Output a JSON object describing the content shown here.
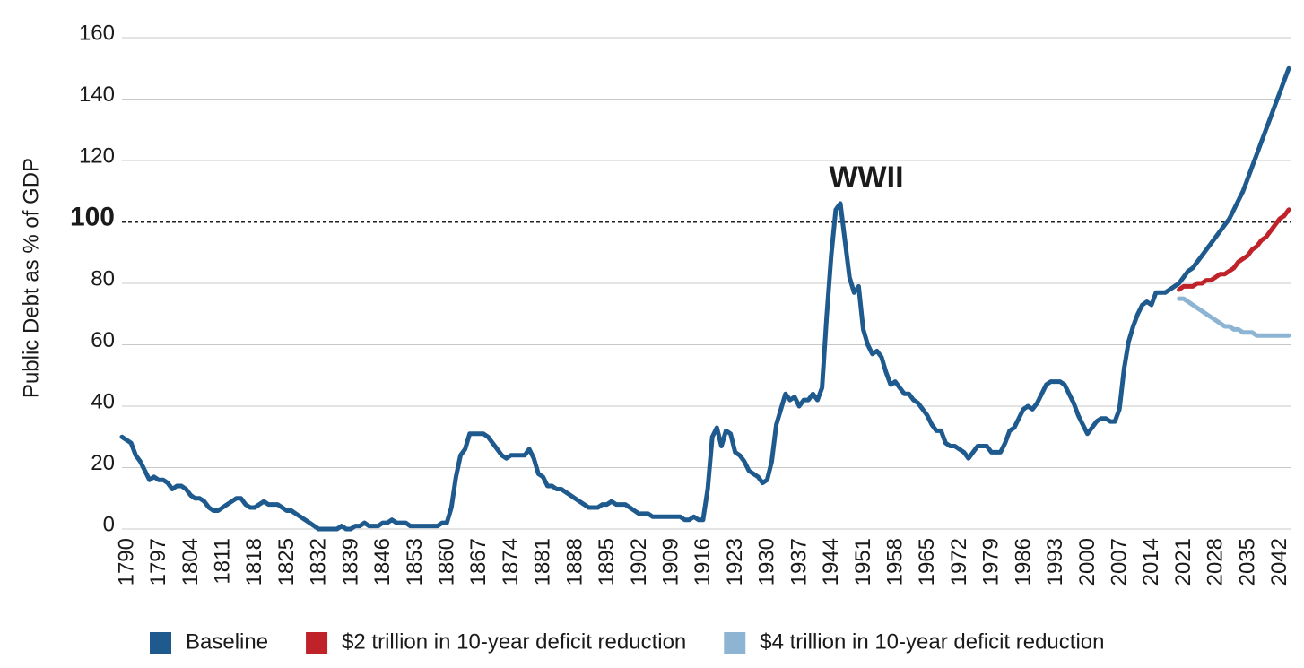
{
  "chart_data": {
    "type": "line",
    "y_label": "Public Debt as % of GDP",
    "annotation": "WWII",
    "xlim": [
      1790,
      2045
    ],
    "xticks": [
      1790,
      1797,
      1804,
      1811,
      1818,
      1825,
      1832,
      1839,
      1846,
      1853,
      1860,
      1867,
      1874,
      1881,
      1888,
      1895,
      1902,
      1909,
      1916,
      1923,
      1930,
      1937,
      1944,
      1951,
      1958,
      1965,
      1972,
      1979,
      1986,
      1993,
      2000,
      2007,
      2014,
      2021,
      2028,
      2035,
      2042
    ],
    "ylim": [
      0,
      160
    ],
    "yticks": [
      0,
      20,
      40,
      60,
      80,
      100,
      120,
      140,
      160
    ],
    "reference_line": 100,
    "grid": true,
    "legend": "bottom",
    "series": [
      {
        "name": "Baseline",
        "color": "#1f5a8e",
        "x": [
          1790,
          1791,
          1792,
          1793,
          1794,
          1795,
          1796,
          1797,
          1798,
          1799,
          1800,
          1801,
          1802,
          1803,
          1804,
          1805,
          1806,
          1807,
          1808,
          1809,
          1810,
          1811,
          1812,
          1813,
          1814,
          1815,
          1816,
          1817,
          1818,
          1819,
          1820,
          1821,
          1822,
          1823,
          1824,
          1825,
          1826,
          1827,
          1828,
          1829,
          1830,
          1831,
          1832,
          1833,
          1834,
          1835,
          1836,
          1837,
          1838,
          1839,
          1840,
          1841,
          1842,
          1843,
          1844,
          1845,
          1846,
          1847,
          1848,
          1849,
          1850,
          1851,
          1852,
          1853,
          1854,
          1855,
          1856,
          1857,
          1858,
          1859,
          1860,
          1861,
          1862,
          1863,
          1864,
          1865,
          1866,
          1867,
          1868,
          1869,
          1870,
          1871,
          1872,
          1873,
          1874,
          1875,
          1876,
          1877,
          1878,
          1879,
          1880,
          1881,
          1882,
          1883,
          1884,
          1885,
          1886,
          1887,
          1888,
          1889,
          1890,
          1891,
          1892,
          1893,
          1894,
          1895,
          1896,
          1897,
          1898,
          1899,
          1900,
          1901,
          1902,
          1903,
          1904,
          1905,
          1906,
          1907,
          1908,
          1909,
          1910,
          1911,
          1912,
          1913,
          1914,
          1915,
          1916,
          1917,
          1918,
          1919,
          1920,
          1921,
          1922,
          1923,
          1924,
          1925,
          1926,
          1927,
          1928,
          1929,
          1930,
          1931,
          1932,
          1933,
          1934,
          1935,
          1936,
          1937,
          1938,
          1939,
          1940,
          1941,
          1942,
          1943,
          1944,
          1945,
          1946,
          1947,
          1948,
          1949,
          1950,
          1951,
          1952,
          1953,
          1954,
          1955,
          1956,
          1957,
          1958,
          1959,
          1960,
          1961,
          1962,
          1963,
          1964,
          1965,
          1966,
          1967,
          1968,
          1969,
          1970,
          1971,
          1972,
          1973,
          1974,
          1975,
          1976,
          1977,
          1978,
          1979,
          1980,
          1981,
          1982,
          1983,
          1984,
          1985,
          1986,
          1987,
          1988,
          1989,
          1990,
          1991,
          1992,
          1993,
          1994,
          1995,
          1996,
          1997,
          1998,
          1999,
          2000,
          2001,
          2002,
          2003,
          2004,
          2005,
          2006,
          2007,
          2008,
          2009,
          2010,
          2011,
          2012,
          2013,
          2014,
          2015,
          2016,
          2017,
          2018,
          2019,
          2020,
          2021,
          2022,
          2023,
          2024,
          2025,
          2026,
          2027,
          2028,
          2029,
          2030,
          2031,
          2032,
          2033,
          2034,
          2035,
          2036,
          2037,
          2038,
          2039,
          2040,
          2041,
          2042,
          2043,
          2044,
          2045
        ],
        "values": [
          30,
          29,
          28,
          24,
          22,
          19,
          16,
          17,
          16,
          16,
          15,
          13,
          14,
          14,
          13,
          11,
          10,
          10,
          9,
          7,
          6,
          6,
          7,
          8,
          9,
          10,
          10,
          8,
          7,
          7,
          8,
          9,
          8,
          8,
          8,
          7,
          6,
          6,
          5,
          4,
          3,
          2,
          1,
          0,
          0,
          0,
          0,
          0,
          1,
          0,
          0,
          1,
          1,
          2,
          1,
          1,
          1,
          2,
          2,
          3,
          2,
          2,
          2,
          1,
          1,
          1,
          1,
          1,
          1,
          1,
          2,
          2,
          7,
          17,
          24,
          26,
          31,
          31,
          31,
          31,
          30,
          28,
          26,
          24,
          23,
          24,
          24,
          24,
          24,
          26,
          23,
          18,
          17,
          14,
          14,
          13,
          13,
          12,
          11,
          10,
          9,
          8,
          7,
          7,
          7,
          8,
          8,
          9,
          8,
          8,
          8,
          7,
          6,
          5,
          5,
          5,
          4,
          4,
          4,
          4,
          4,
          4,
          4,
          3,
          3,
          4,
          3,
          3,
          13,
          30,
          33,
          27,
          32,
          31,
          25,
          24,
          22,
          19,
          18,
          17,
          15,
          16,
          22,
          34,
          39,
          44,
          42,
          43,
          40,
          42,
          42,
          44,
          42,
          46,
          69,
          89,
          104,
          106,
          94,
          82,
          77,
          79,
          65,
          60,
          57,
          58,
          56,
          51,
          47,
          48,
          46,
          44,
          44,
          42,
          41,
          39,
          37,
          34,
          32,
          32,
          28,
          27,
          27,
          26,
          25,
          23,
          25,
          27,
          27,
          27,
          25,
          25,
          25,
          28,
          32,
          33,
          36,
          39,
          40,
          39,
          41,
          44,
          47,
          48,
          48,
          48,
          47,
          44,
          41,
          37,
          34,
          31,
          33,
          35,
          36,
          36,
          35,
          35,
          39,
          52,
          61,
          66,
          70,
          73,
          74,
          73,
          77,
          77,
          77,
          78,
          79,
          80,
          82,
          84,
          85,
          87,
          89,
          91,
          93,
          95,
          97,
          99,
          101,
          104,
          107,
          110,
          114,
          118,
          122,
          126,
          130,
          134,
          138,
          142,
          146,
          150
        ]
      },
      {
        "name": "$2 trillion in 10-year deficit reduction",
        "color": "#c0222a",
        "x": [
          2021,
          2022,
          2023,
          2024,
          2025,
          2026,
          2027,
          2028,
          2029,
          2030,
          2031,
          2032,
          2033,
          2034,
          2035,
          2036,
          2037,
          2038,
          2039,
          2040,
          2041,
          2042,
          2043,
          2044,
          2045
        ],
        "values": [
          78,
          79,
          79,
          79,
          80,
          80,
          81,
          81,
          82,
          83,
          83,
          84,
          85,
          87,
          88,
          89,
          91,
          92,
          94,
          95,
          97,
          99,
          101,
          102,
          104
        ]
      },
      {
        "name": "$4 trillion in 10-year deficit reduction",
        "color": "#8db5d3",
        "x": [
          2021,
          2022,
          2023,
          2024,
          2025,
          2026,
          2027,
          2028,
          2029,
          2030,
          2031,
          2032,
          2033,
          2034,
          2035,
          2036,
          2037,
          2038,
          2039,
          2040,
          2041,
          2042,
          2043,
          2044,
          2045
        ],
        "values": [
          75,
          75,
          74,
          73,
          72,
          71,
          70,
          69,
          68,
          67,
          66,
          66,
          65,
          65,
          64,
          64,
          64,
          63,
          63,
          63,
          63,
          63,
          63,
          63,
          63
        ]
      }
    ]
  }
}
